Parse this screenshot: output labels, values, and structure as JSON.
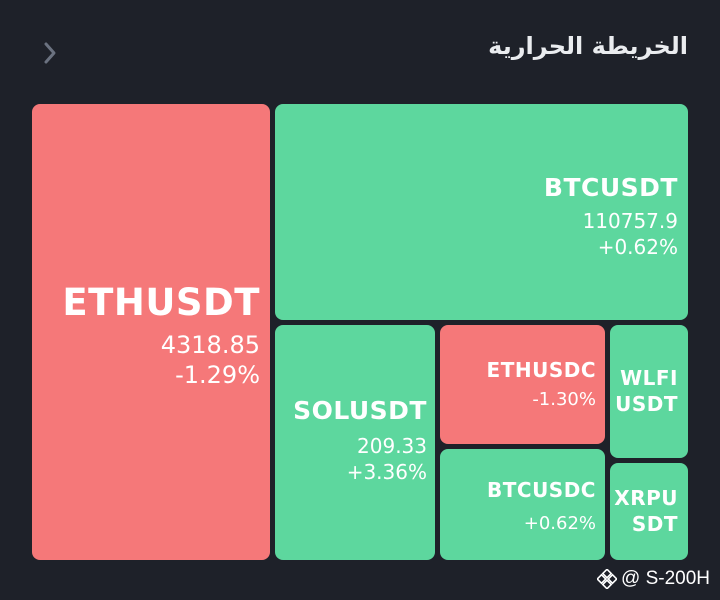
{
  "header": {
    "title": "الخريطة الحرارية"
  },
  "tiles": [
    {
      "symbol": "ETHUSDT",
      "price": "4318.85",
      "change": "-1.29%",
      "trend": "down"
    },
    {
      "symbol": "BTCUSDT",
      "price": "110757.9",
      "change": "+0.62%",
      "trend": "up"
    },
    {
      "symbol": "SOLUSDT",
      "price": "209.33",
      "change": "+3.36%",
      "trend": "up"
    },
    {
      "symbol": "ETHUSDC",
      "price": "",
      "change": "-1.30%",
      "trend": "down"
    },
    {
      "symbol_line1": "WLFI",
      "symbol_line2": "USDT",
      "trend": "up"
    },
    {
      "symbol": "BTCUSDC",
      "change": "+0.62%",
      "trend": "up"
    },
    {
      "symbol_line1": "XRPU",
      "symbol_line2": "SDT",
      "trend": "up"
    }
  ],
  "footer": {
    "handle": "@ S-200H"
  },
  "colors": {
    "up": "#5dd79e",
    "down": "#f57879",
    "background": "#1e2129"
  },
  "icons": {
    "back": "chevron-right-icon",
    "watermark": "binance-logo-icon"
  }
}
